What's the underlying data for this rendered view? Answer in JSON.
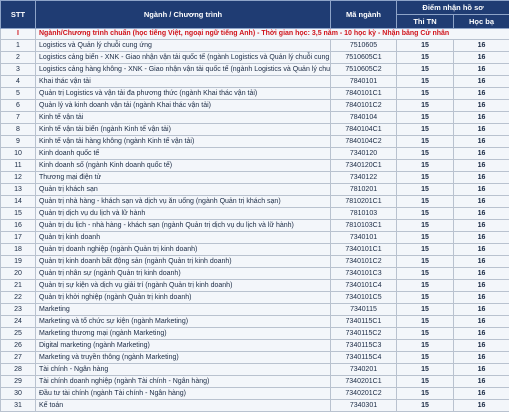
{
  "header": {
    "stt": "STT",
    "program": "Ngành / Chương trình",
    "code": "Mã ngành",
    "score_group": "Điểm nhận hồ sơ",
    "exam": "Thi TN",
    "transcript": "Học bạ"
  },
  "section": {
    "number": "I",
    "label": "Ngành/Chương trình chuẩn (học tiếng Việt, ngoại ngữ tiếng Anh) - Thời gian học: 3,5 năm - 10 học kỳ - Nhận bằng Cử nhân"
  },
  "rows": [
    [
      1,
      "Logistics và Quản lý chuỗi cung ứng",
      "7510605",
      15,
      16
    ],
    [
      2,
      "Logistics cảng biển - XNK - Giao nhận vận tải quốc tế (ngành Logistics và Quản lý chuỗi cung ứng)",
      "7510605C1",
      15,
      16
    ],
    [
      3,
      "Logistics cảng hàng không - XNK - Giao nhận vận tải quốc tế (ngành Logistics và Quản lý chuỗi cung ứng)",
      "7510605C2",
      15,
      16
    ],
    [
      4,
      "Khai thác vận tải",
      "7840101",
      15,
      16
    ],
    [
      5,
      "Quản trị Logistics và vận tải đa phương thức (ngành Khai thác vận tải)",
      "7840101C1",
      15,
      16
    ],
    [
      6,
      "Quản lý và kinh doanh vận tải (ngành Khai thác vận tải)",
      "7840101C2",
      15,
      16
    ],
    [
      7,
      "Kinh tế vận tải",
      "7840104",
      15,
      16
    ],
    [
      8,
      "Kinh tế vận tải biển (ngành Kinh tế vận tải)",
      "7840104C1",
      15,
      16
    ],
    [
      9,
      "Kinh tế vận tải hàng không (ngành Kinh tế vận tải)",
      "7840104C2",
      15,
      16
    ],
    [
      10,
      "Kinh doanh quốc tế",
      "7340120",
      15,
      16
    ],
    [
      11,
      "Kinh doanh số (ngành Kinh doanh quốc tế)",
      "7340120C1",
      15,
      16
    ],
    [
      12,
      "Thương mại điện tử",
      "7340122",
      15,
      16
    ],
    [
      13,
      "Quản trị khách sạn",
      "7810201",
      15,
      16
    ],
    [
      14,
      "Quản trị nhà hàng - khách sạn và dịch vụ ăn uống (ngành Quản trị khách sạn)",
      "7810201C1",
      15,
      16
    ],
    [
      15,
      "Quản trị dịch vụ du lịch và lữ hành",
      "7810103",
      15,
      16
    ],
    [
      16,
      "Quản trị du lịch - nhà hàng - khách sạn (ngành Quản trị dịch vụ du lịch và lữ hành)",
      "7810103C1",
      15,
      16
    ],
    [
      17,
      "Quản trị kinh doanh",
      "7340101",
      15,
      16
    ],
    [
      18,
      "Quản trị doanh nghiệp (ngành Quản trị kinh doanh)",
      "7340101C1",
      15,
      16
    ],
    [
      19,
      "Quản trị kinh doanh bất động sản (ngành Quản trị kinh doanh)",
      "7340101C2",
      15,
      16
    ],
    [
      20,
      "Quản trị nhân sự (ngành Quản trị kinh doanh)",
      "7340101C3",
      15,
      16
    ],
    [
      21,
      "Quản trị sự kiện và dịch vụ giải trí (ngành Quản trị kinh doanh)",
      "7340101C4",
      15,
      16
    ],
    [
      22,
      "Quản trị khởi nghiệp (ngành Quản trị kinh doanh)",
      "7340101C5",
      15,
      16
    ],
    [
      23,
      "Marketing",
      "7340115",
      15,
      16
    ],
    [
      24,
      "Marketing và tổ chức sự kiện (ngành Marketing)",
      "7340115C1",
      15,
      16
    ],
    [
      25,
      "Marketing thương mại (ngành Marketing)",
      "7340115C2",
      15,
      16
    ],
    [
      26,
      "Digital marketing (ngành Marketing)",
      "7340115C3",
      15,
      16
    ],
    [
      27,
      "Marketing và truyền thông (ngành Marketing)",
      "7340115C4",
      15,
      16
    ],
    [
      28,
      "Tài chính - Ngân hàng",
      "7340201",
      15,
      16
    ],
    [
      29,
      "Tài chính doanh nghiệp (ngành Tài chính - Ngân hàng)",
      "7340201C1",
      15,
      16
    ],
    [
      30,
      "Đầu tư tài chính (ngành Tài chính - Ngân hàng)",
      "7340201C2",
      15,
      16
    ],
    [
      31,
      "Kế toán",
      "7340301",
      15,
      16
    ]
  ]
}
